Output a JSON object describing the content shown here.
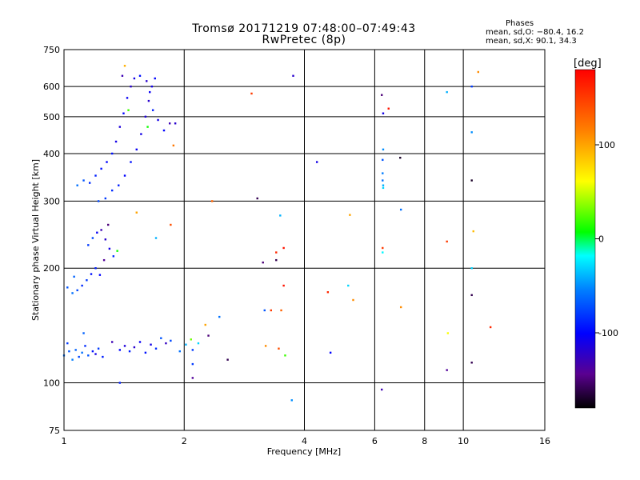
{
  "header": {
    "title_line1": "Tromsø 20171219 07:48:00–07:49:43",
    "title_line2": "RwPretec (8p)",
    "info_heading": "Phases",
    "info_line1": "mean, sd,O: −80.4, 16.2",
    "info_line2": "mean, sd,X:  90.1, 34.3"
  },
  "chart_data": {
    "type": "scatter",
    "title": "Tromsø 20171219 07:48:00–07:49:43",
    "subtitle": "RwPretec (8p)",
    "xlabel": "Frequency [MHz]",
    "ylabel": "Stationary phase Virtual Height [km]",
    "x_scale": "log",
    "y_scale": "log",
    "xlim": [
      1,
      16
    ],
    "ylim": [
      75,
      750
    ],
    "x_ticks": [
      1,
      2,
      4,
      6,
      8,
      10,
      16
    ],
    "x_tick_labels": [
      "1",
      "2",
      "4",
      "6",
      "8",
      "10",
      "16"
    ],
    "y_ticks": [
      75,
      100,
      200,
      300,
      400,
      500,
      600,
      750
    ],
    "y_tick_labels": [
      "75",
      "100",
      "200",
      "300",
      "400",
      "500",
      "600",
      "750"
    ],
    "grid": true,
    "colorbar": {
      "label": "[deg]",
      "range": [
        -180,
        180
      ],
      "ticks": [
        100,
        0,
        -100
      ],
      "tick_labels": [
        "100",
        "0",
        "-100"
      ],
      "colors": [
        "#000000",
        "#5a0090",
        "#0000ff",
        "#0080ff",
        "#00ffff",
        "#00ff00",
        "#ffff00",
        "#ff8000",
        "#ff0000"
      ]
    },
    "points": [
      {
        "x": 1.0,
        "y": 118,
        "phase": -60
      },
      {
        "x": 1.03,
        "y": 121,
        "phase": -70
      },
      {
        "x": 1.05,
        "y": 115,
        "phase": -55
      },
      {
        "x": 1.07,
        "y": 122,
        "phase": -65
      },
      {
        "x": 1.09,
        "y": 117,
        "phase": -75
      },
      {
        "x": 1.11,
        "y": 120,
        "phase": -60
      },
      {
        "x": 1.13,
        "y": 125,
        "phase": -85
      },
      {
        "x": 1.15,
        "y": 118,
        "phase": -70
      },
      {
        "x": 1.18,
        "y": 121,
        "phase": -95
      },
      {
        "x": 1.2,
        "y": 119,
        "phase": -110
      },
      {
        "x": 1.22,
        "y": 123,
        "phase": -80
      },
      {
        "x": 1.25,
        "y": 117,
        "phase": -90
      },
      {
        "x": 1.12,
        "y": 135,
        "phase": -65
      },
      {
        "x": 1.02,
        "y": 127,
        "phase": -80
      },
      {
        "x": 1.38,
        "y": 122,
        "phase": -100
      },
      {
        "x": 1.42,
        "y": 125,
        "phase": -115
      },
      {
        "x": 1.46,
        "y": 121,
        "phase": -90
      },
      {
        "x": 1.5,
        "y": 124,
        "phase": -120
      },
      {
        "x": 1.55,
        "y": 128,
        "phase": -105
      },
      {
        "x": 1.6,
        "y": 120,
        "phase": -95
      },
      {
        "x": 1.65,
        "y": 126,
        "phase": -110
      },
      {
        "x": 1.7,
        "y": 123,
        "phase": -85
      },
      {
        "x": 1.75,
        "y": 131,
        "phase": -70
      },
      {
        "x": 1.8,
        "y": 127,
        "phase": -125
      },
      {
        "x": 1.85,
        "y": 129,
        "phase": -75
      },
      {
        "x": 1.95,
        "y": 121,
        "phase": -60
      },
      {
        "x": 2.02,
        "y": 126,
        "phase": -40
      },
      {
        "x": 2.1,
        "y": 122,
        "phase": -80
      },
      {
        "x": 1.32,
        "y": 128,
        "phase": -130
      },
      {
        "x": 1.02,
        "y": 178,
        "phase": -70
      },
      {
        "x": 1.05,
        "y": 172,
        "phase": -60
      },
      {
        "x": 1.08,
        "y": 175,
        "phase": -75
      },
      {
        "x": 1.11,
        "y": 180,
        "phase": -85
      },
      {
        "x": 1.14,
        "y": 186,
        "phase": -80
      },
      {
        "x": 1.17,
        "y": 193,
        "phase": -95
      },
      {
        "x": 1.2,
        "y": 200,
        "phase": -90
      },
      {
        "x": 1.23,
        "y": 192,
        "phase": -100
      },
      {
        "x": 1.06,
        "y": 190,
        "phase": -65
      },
      {
        "x": 1.15,
        "y": 230,
        "phase": -80
      },
      {
        "x": 1.18,
        "y": 240,
        "phase": -75
      },
      {
        "x": 1.21,
        "y": 248,
        "phase": -105
      },
      {
        "x": 1.24,
        "y": 252,
        "phase": -130
      },
      {
        "x": 1.27,
        "y": 238,
        "phase": -120
      },
      {
        "x": 1.3,
        "y": 225,
        "phase": -110
      },
      {
        "x": 1.33,
        "y": 215,
        "phase": -85
      },
      {
        "x": 1.36,
        "y": 222,
        "phase": 10
      },
      {
        "x": 1.26,
        "y": 210,
        "phase": -140
      },
      {
        "x": 1.29,
        "y": 260,
        "phase": -150
      },
      {
        "x": 1.08,
        "y": 330,
        "phase": -60
      },
      {
        "x": 1.12,
        "y": 340,
        "phase": -70
      },
      {
        "x": 1.16,
        "y": 335,
        "phase": -85
      },
      {
        "x": 1.2,
        "y": 350,
        "phase": -90
      },
      {
        "x": 1.24,
        "y": 365,
        "phase": -95
      },
      {
        "x": 1.28,
        "y": 380,
        "phase": -100
      },
      {
        "x": 1.32,
        "y": 400,
        "phase": -95
      },
      {
        "x": 1.35,
        "y": 430,
        "phase": -110
      },
      {
        "x": 1.38,
        "y": 470,
        "phase": -115
      },
      {
        "x": 1.41,
        "y": 510,
        "phase": -100
      },
      {
        "x": 1.44,
        "y": 560,
        "phase": -105
      },
      {
        "x": 1.47,
        "y": 600,
        "phase": -120
      },
      {
        "x": 1.5,
        "y": 630,
        "phase": -110
      },
      {
        "x": 1.22,
        "y": 300,
        "phase": -75
      },
      {
        "x": 1.27,
        "y": 305,
        "phase": -80
      },
      {
        "x": 1.32,
        "y": 320,
        "phase": -85
      },
      {
        "x": 1.37,
        "y": 330,
        "phase": -90
      },
      {
        "x": 1.42,
        "y": 350,
        "phase": -100
      },
      {
        "x": 1.47,
        "y": 380,
        "phase": -95
      },
      {
        "x": 1.52,
        "y": 410,
        "phase": -105
      },
      {
        "x": 1.56,
        "y": 450,
        "phase": -110
      },
      {
        "x": 1.6,
        "y": 500,
        "phase": -115
      },
      {
        "x": 1.63,
        "y": 550,
        "phase": -120
      },
      {
        "x": 1.66,
        "y": 600,
        "phase": -110
      },
      {
        "x": 1.69,
        "y": 630,
        "phase": -100
      },
      {
        "x": 1.55,
        "y": 640,
        "phase": -95
      },
      {
        "x": 1.61,
        "y": 620,
        "phase": -120
      },
      {
        "x": 1.64,
        "y": 580,
        "phase": -105
      },
      {
        "x": 1.67,
        "y": 520,
        "phase": -90
      },
      {
        "x": 1.72,
        "y": 490,
        "phase": -110
      },
      {
        "x": 1.78,
        "y": 460,
        "phase": -100
      },
      {
        "x": 1.84,
        "y": 480,
        "phase": -130
      },
      {
        "x": 1.9,
        "y": 480,
        "phase": -120
      },
      {
        "x": 1.45,
        "y": 520,
        "phase": 20
      },
      {
        "x": 1.62,
        "y": 470,
        "phase": 10
      },
      {
        "x": 1.42,
        "y": 680,
        "phase": 95
      },
      {
        "x": 1.4,
        "y": 640,
        "phase": -130
      },
      {
        "x": 1.88,
        "y": 420,
        "phase": 120
      },
      {
        "x": 1.7,
        "y": 240,
        "phase": -40
      },
      {
        "x": 1.85,
        "y": 260,
        "phase": 140
      },
      {
        "x": 1.52,
        "y": 280,
        "phase": 100
      },
      {
        "x": 1.38,
        "y": 100,
        "phase": -90
      },
      {
        "x": 2.08,
        "y": 130,
        "phase": 30
      },
      {
        "x": 2.17,
        "y": 127,
        "phase": -30
      },
      {
        "x": 2.1,
        "y": 112,
        "phase": -80
      },
      {
        "x": 2.1,
        "y": 103,
        "phase": -140
      },
      {
        "x": 2.26,
        "y": 142,
        "phase": 100
      },
      {
        "x": 2.3,
        "y": 133,
        "phase": -150
      },
      {
        "x": 2.35,
        "y": 300,
        "phase": 130
      },
      {
        "x": 2.45,
        "y": 149,
        "phase": -60
      },
      {
        "x": 2.57,
        "y": 115,
        "phase": -160
      },
      {
        "x": 2.95,
        "y": 575,
        "phase": 150
      },
      {
        "x": 3.05,
        "y": 305,
        "phase": -160
      },
      {
        "x": 3.15,
        "y": 207,
        "phase": -150
      },
      {
        "x": 3.18,
        "y": 155,
        "phase": -70
      },
      {
        "x": 3.2,
        "y": 125,
        "phase": 110
      },
      {
        "x": 3.3,
        "y": 155,
        "phase": 150
      },
      {
        "x": 3.4,
        "y": 210,
        "phase": -160
      },
      {
        "x": 3.4,
        "y": 220,
        "phase": 160
      },
      {
        "x": 3.45,
        "y": 123,
        "phase": 140
      },
      {
        "x": 3.48,
        "y": 275,
        "phase": -40
      },
      {
        "x": 3.5,
        "y": 155,
        "phase": 130
      },
      {
        "x": 3.55,
        "y": 226,
        "phase": 170
      },
      {
        "x": 3.55,
        "y": 180,
        "phase": 170
      },
      {
        "x": 3.58,
        "y": 118,
        "phase": 20
      },
      {
        "x": 3.72,
        "y": 90,
        "phase": -50
      },
      {
        "x": 3.75,
        "y": 640,
        "phase": -120
      },
      {
        "x": 4.3,
        "y": 380,
        "phase": -110
      },
      {
        "x": 4.58,
        "y": 173,
        "phase": 160
      },
      {
        "x": 4.65,
        "y": 120,
        "phase": -100
      },
      {
        "x": 5.15,
        "y": 180,
        "phase": -30
      },
      {
        "x": 5.2,
        "y": 276,
        "phase": 100
      },
      {
        "x": 5.3,
        "y": 165,
        "phase": 110
      },
      {
        "x": 6.25,
        "y": 570,
        "phase": -150
      },
      {
        "x": 6.3,
        "y": 510,
        "phase": -110
      },
      {
        "x": 6.3,
        "y": 410,
        "phase": -50
      },
      {
        "x": 6.28,
        "y": 385,
        "phase": -70
      },
      {
        "x": 6.28,
        "y": 355,
        "phase": -55
      },
      {
        "x": 6.28,
        "y": 340,
        "phase": -60
      },
      {
        "x": 6.3,
        "y": 330,
        "phase": -40
      },
      {
        "x": 6.3,
        "y": 325,
        "phase": -30
      },
      {
        "x": 6.28,
        "y": 226,
        "phase": 150
      },
      {
        "x": 6.28,
        "y": 220,
        "phase": -20
      },
      {
        "x": 6.25,
        "y": 96,
        "phase": -130
      },
      {
        "x": 6.5,
        "y": 525,
        "phase": 170
      },
      {
        "x": 6.95,
        "y": 390,
        "phase": -170
      },
      {
        "x": 6.98,
        "y": 285,
        "phase": -60
      },
      {
        "x": 6.98,
        "y": 158,
        "phase": 110
      },
      {
        "x": 9.1,
        "y": 580,
        "phase": -40
      },
      {
        "x": 9.1,
        "y": 235,
        "phase": 150
      },
      {
        "x": 9.15,
        "y": 135,
        "phase": 60
      },
      {
        "x": 9.1,
        "y": 108,
        "phase": -140
      },
      {
        "x": 10.5,
        "y": 600,
        "phase": -80
      },
      {
        "x": 10.5,
        "y": 455,
        "phase": -50
      },
      {
        "x": 10.5,
        "y": 340,
        "phase": -170
      },
      {
        "x": 10.6,
        "y": 250,
        "phase": 90
      },
      {
        "x": 10.5,
        "y": 200,
        "phase": -30
      },
      {
        "x": 10.5,
        "y": 170,
        "phase": -160
      },
      {
        "x": 10.5,
        "y": 113,
        "phase": -160
      },
      {
        "x": 10.9,
        "y": 655,
        "phase": 110
      },
      {
        "x": 11.7,
        "y": 140,
        "phase": 160
      }
    ]
  }
}
